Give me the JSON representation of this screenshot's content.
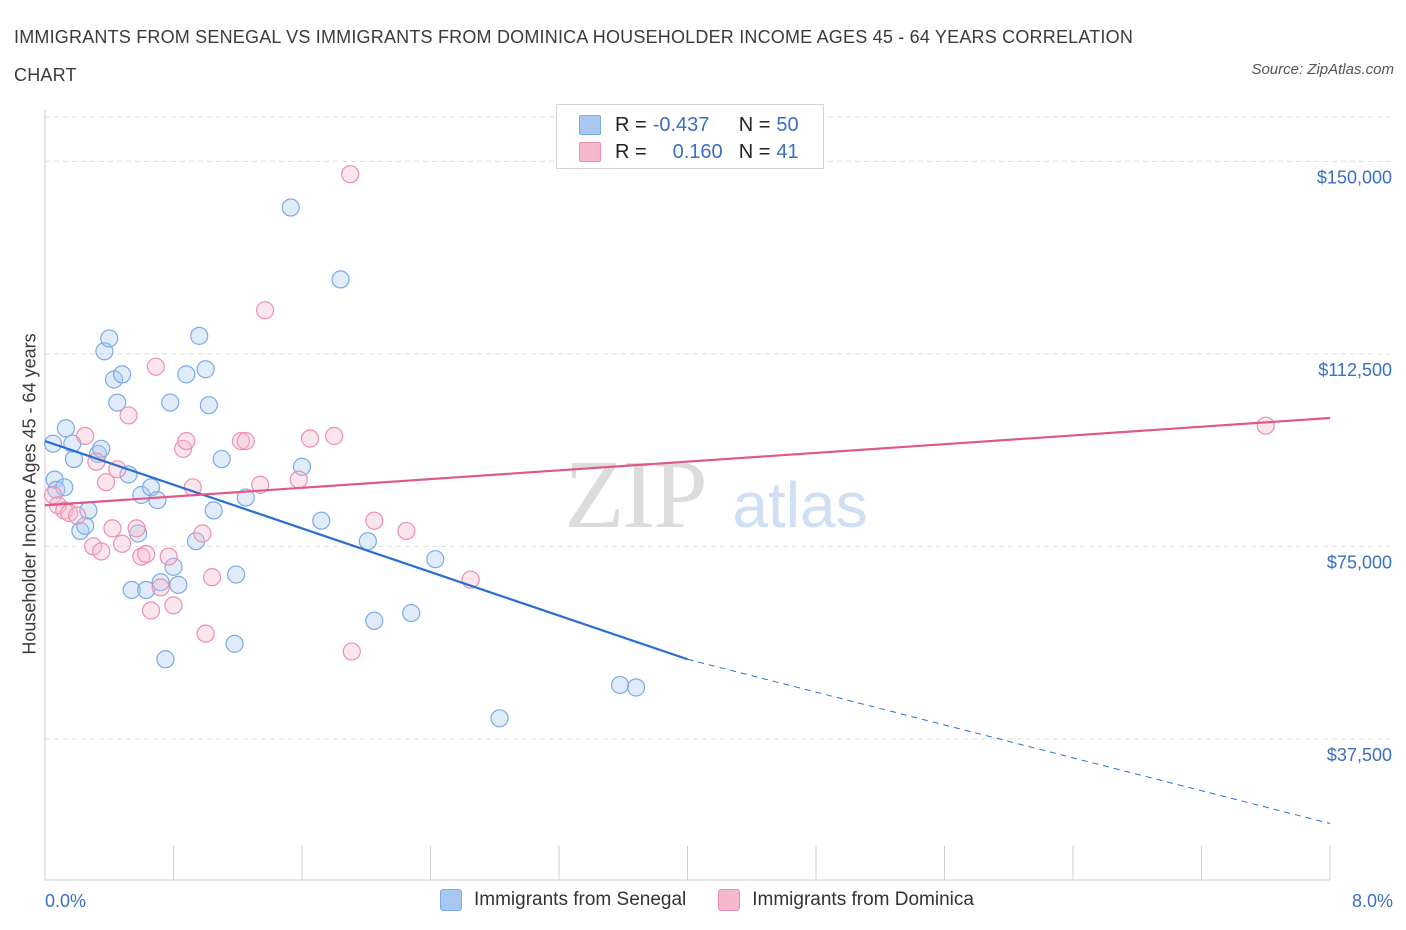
{
  "chart_data": {
    "type": "scatter",
    "title": "IMMIGRANTS FROM SENEGAL VS IMMIGRANTS FROM DOMINICA HOUSEHOLDER INCOME AGES 45 - 64 YEARS CORRELATION CHART",
    "source": "Source: ZipAtlas.com",
    "xlabel": "",
    "ylabel": "Householder Income Ages 45 - 64 years",
    "xlim": [
      0,
      8
    ],
    "ylim": [
      10000,
      160000
    ],
    "x_tick_labels": {
      "min": "0.0%",
      "max": "8.0%"
    },
    "y_ticks": [
      37500,
      75000,
      112500,
      150000
    ],
    "y_tick_labels": [
      "$37,500",
      "$75,000",
      "$112,500",
      "$150,000"
    ],
    "grid": true,
    "watermark": {
      "zip": "ZIP",
      "atlas": "atlas"
    },
    "legend_stats": [
      {
        "r_label": "R = ",
        "r_value": "-0.437",
        "n_label": "N = ",
        "n_value": "50",
        "color": "#a8c8f0"
      },
      {
        "r_label": "R = ",
        "r_value": "0.160",
        "n_label": "N = ",
        "n_value": "41",
        "color": "#f5b8cc"
      }
    ],
    "series": [
      {
        "name": "Immigrants from Senegal",
        "color": "#7aaae8",
        "fill": "rgba(168,200,240,0.35)",
        "line_color": "#2a6fd1",
        "trend": {
          "x0": 0.0,
          "y0": 95500,
          "x1": 4.0,
          "y1": 53000,
          "x_dash_end": 8.0,
          "y_dash_end": 21000
        },
        "points": [
          [
            0.05,
            95000
          ],
          [
            0.06,
            88000
          ],
          [
            0.07,
            86000
          ],
          [
            0.12,
            86500
          ],
          [
            0.13,
            98000
          ],
          [
            0.17,
            95000
          ],
          [
            0.18,
            92000
          ],
          [
            0.22,
            78000
          ],
          [
            0.25,
            79000
          ],
          [
            0.27,
            82000
          ],
          [
            0.33,
            93000
          ],
          [
            0.35,
            94000
          ],
          [
            0.37,
            113000
          ],
          [
            0.4,
            115500
          ],
          [
            0.43,
            107500
          ],
          [
            0.45,
            103000
          ],
          [
            0.48,
            108500
          ],
          [
            0.52,
            89000
          ],
          [
            0.54,
            66500
          ],
          [
            0.58,
            77500
          ],
          [
            0.6,
            85000
          ],
          [
            0.63,
            66500
          ],
          [
            0.66,
            86500
          ],
          [
            0.7,
            84000
          ],
          [
            0.72,
            68000
          ],
          [
            0.75,
            53000
          ],
          [
            0.78,
            103000
          ],
          [
            0.8,
            71000
          ],
          [
            0.83,
            67500
          ],
          [
            0.88,
            108500
          ],
          [
            0.94,
            76000
          ],
          [
            0.96,
            116000
          ],
          [
            1.0,
            109500
          ],
          [
            1.02,
            102500
          ],
          [
            1.05,
            82000
          ],
          [
            1.1,
            92000
          ],
          [
            1.18,
            56000
          ],
          [
            1.19,
            69500
          ],
          [
            1.25,
            84500
          ],
          [
            1.53,
            141000
          ],
          [
            1.6,
            90500
          ],
          [
            1.72,
            80000
          ],
          [
            1.84,
            127000
          ],
          [
            2.01,
            76000
          ],
          [
            2.05,
            60500
          ],
          [
            2.28,
            62000
          ],
          [
            2.43,
            72500
          ],
          [
            2.83,
            41500
          ],
          [
            3.58,
            48000
          ],
          [
            3.68,
            47500
          ]
        ]
      },
      {
        "name": "Immigrants from Dominica",
        "color": "#ef8fb0",
        "fill": "rgba(245,184,204,0.35)",
        "line_color": "#e0588a",
        "trend": {
          "x0": 0.0,
          "y0": 83000,
          "x1": 8.0,
          "y1": 100000
        },
        "points": [
          [
            0.05,
            85000
          ],
          [
            0.08,
            83000
          ],
          [
            0.12,
            82000
          ],
          [
            0.15,
            81500
          ],
          [
            0.2,
            81000
          ],
          [
            0.25,
            96500
          ],
          [
            0.3,
            75000
          ],
          [
            0.32,
            91500
          ],
          [
            0.35,
            74000
          ],
          [
            0.38,
            87500
          ],
          [
            0.42,
            78500
          ],
          [
            0.45,
            90000
          ],
          [
            0.48,
            75500
          ],
          [
            0.52,
            100500
          ],
          [
            0.57,
            78500
          ],
          [
            0.6,
            73000
          ],
          [
            0.63,
            73500
          ],
          [
            0.66,
            62500
          ],
          [
            0.69,
            110000
          ],
          [
            0.72,
            67000
          ],
          [
            0.77,
            73000
          ],
          [
            0.8,
            63500
          ],
          [
            0.86,
            94000
          ],
          [
            0.88,
            95500
          ],
          [
            0.92,
            86500
          ],
          [
            0.98,
            77500
          ],
          [
            1.0,
            58000
          ],
          [
            1.04,
            69000
          ],
          [
            1.22,
            95500
          ],
          [
            1.25,
            95500
          ],
          [
            1.34,
            87000
          ],
          [
            1.37,
            121000
          ],
          [
            1.58,
            88000
          ],
          [
            1.65,
            96000
          ],
          [
            1.8,
            96500
          ],
          [
            1.9,
            147500
          ],
          [
            1.91,
            54500
          ],
          [
            2.05,
            80000
          ],
          [
            2.25,
            78000
          ],
          [
            2.65,
            68500
          ],
          [
            7.6,
            98500
          ]
        ]
      }
    ]
  }
}
